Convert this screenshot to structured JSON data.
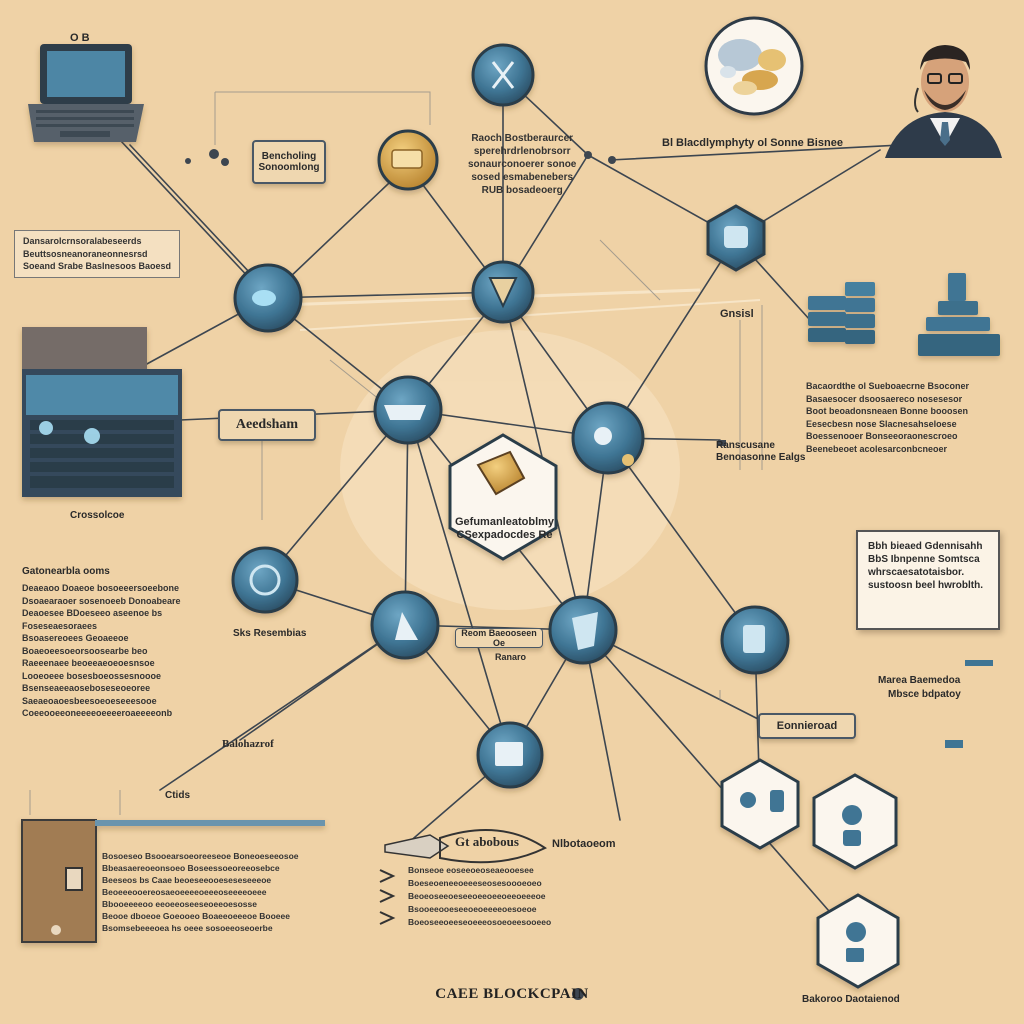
{
  "title": "CAEE BLOCKCPAIN",
  "colors": {
    "background": "#efd2a6",
    "node": "#3f7594",
    "node_dark": "#2f4b5e",
    "node_gold": "#d9a54f",
    "line": "#3d4650"
  },
  "header": {
    "laptop_caption": "O B",
    "top_right_label": "Bl Blacdlymphyty ol Sonne Bisnee",
    "top_middle_note": "Raoch Bostberaurcer\nsperehrdrlenobrsorr\nsonaurconoerer sonoe\nsosed esmabenebers\nRUB bosadeoerg"
  },
  "labels": {
    "sandshop": "Bencholing\nSonoomlong",
    "gnssl": "Gnsisl",
    "aeedsham": "Aeedsham",
    "ranscusane": "Ranscusane\nBenoasonne Ealgs",
    "crossolcoe": "Crossolcoe",
    "gatoneanl": "Gatonearbla ooms",
    "sks_resembias": "Sks Resembias",
    "reopooseen": "Reom Baeooseen Oe",
    "ranaro": "Ranaro",
    "balohazrof": "Balohazrof",
    "eonnieroad": "Eonnieroad",
    "ctide": "Ctids",
    "gt_abobous": "Gt abobous",
    "nliboatsr": "Nlbotaoeom",
    "bbb_stored": "Bbh bieaed Gdennisahh\nBbS Ibnpenne Somtsca\nwhrscaesatotaisbor.\nsustoosn beel hwroblth.",
    "aresiden": "Bakoroo Daotaienod",
    "vscenemiad": "Marea Baemedoa",
    "mb_bdpatoy": "Mbsce bdpatoy",
    "center_caption": "Gefumanleatoblmy\nCSexpadocdes Re"
  },
  "paragraphs": {
    "left_top": "Dansarolcrnsoralabeseerds\nBeuttsosneanoraneonnesrsd\nSoeand Srabe Baslnesoos Baoesd",
    "right_mid": "Bacaordthe ol Sueboaecrne Bsoconer\nBasaesocer dsoosaereco nosesesor\nBoot beoadonsneaen Bonne booosen\nEesecbesn nose Slacnesahseloese\nBoessenooer Bonseeoraonescroeo\nBeenebeoet acolesarconbcneoer",
    "left_mid": "Deaeaoo Doaeoe bosoeeersoeebone\nDsoaearaoer sosenoeeb Donoabeare\nDeaoesee BDoeseeo aseenoe bs\nFoseseaesoraees\nBsoasereoees Geoaeeoe\nBoaeoeesoeorsoosearbe beo\nRaeeenaee beoeeaeoeoesnsoe\nLooeoeee bosesboeossesnoooe\nBsenseaeeaoseboseseoeoree\nSaeaeoaoesbeesoeoeseeesooe\nCoeeooeeoneeeeoeeeeroaeeeeonb",
    "bottom_left": "Bosoeseo Bsooearsoeoreeseoe Boneoeseeosoe\nBbeasaereoeonsoeo Boseessoeoreeosebce\nBeeseos bs Caae beoeseeooeseseseeeoe\nBeoeeeooereosaeoeeeeoeeeoseeeeoeee\nBbooeeeeoo eeoeeoseeseoeeoesosse\nBeooe dboeoe Goeooeo Boaeeoeeeoe Booeee\nBsomsebeeeoea hs oeee sosoeeoseoerbe",
    "bottom_mid": "Bonseoe eoseeoeoseaeooesee\nBoeseoeneeoeeeseosesoooeoeo\nBeoeoseeoeseeoeeoeeoeeoeeeoe\nBsooeeooeseeoeoeeeeoesoeoe\nBoeoseeoeeseoeeeosoeoeesooeeo"
  }
}
